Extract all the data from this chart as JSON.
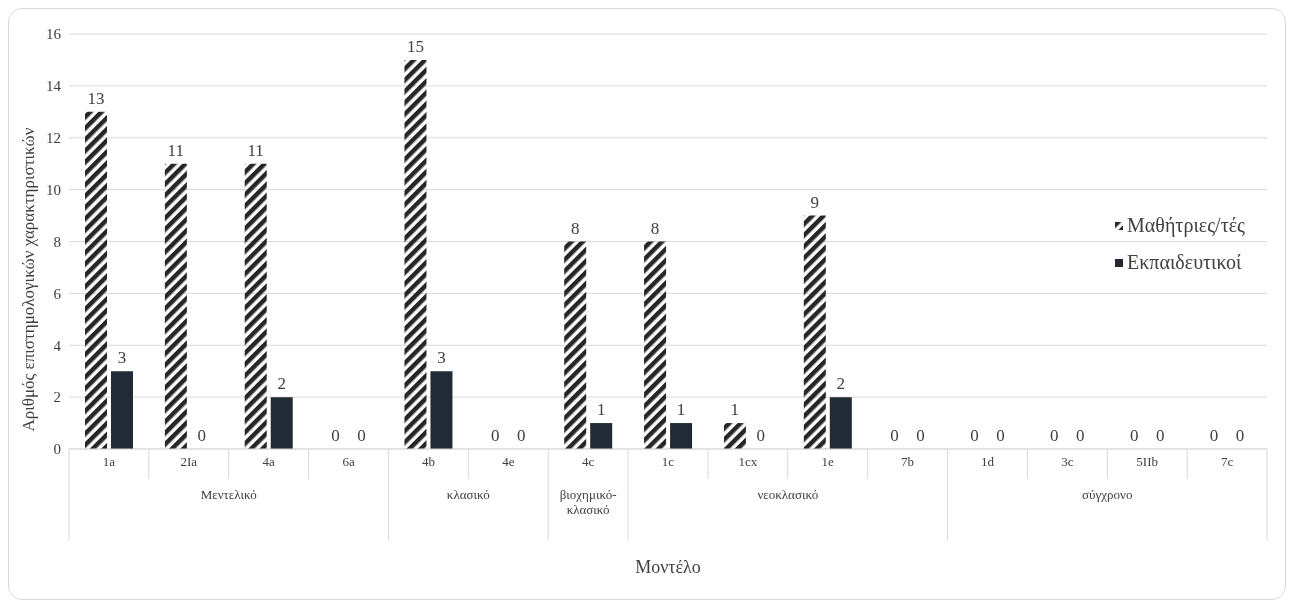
{
  "chart_data": {
    "type": "bar",
    "ylabel": "Αριθμός επιστημολογικών χαρακτηριστικών",
    "xlabel": "Μοντέλο",
    "categories": [
      "1a",
      "2Ia",
      "4a",
      "6a",
      "4b",
      "4e",
      "4c",
      "1c",
      "1cx",
      "1e",
      "7b",
      "1d",
      "3c",
      "5IIb",
      "7c"
    ],
    "series": [
      {
        "name": "Μαθήτριες/τές",
        "color": "#262626",
        "values": [
          13,
          11,
          11,
          0,
          15,
          0,
          8,
          8,
          1,
          9,
          0,
          0,
          0,
          0,
          0
        ]
      },
      {
        "name": "Εκπαιδευτικοί",
        "color": "#222a35",
        "values": [
          3,
          0,
          2,
          0,
          3,
          0,
          1,
          1,
          0,
          2,
          0,
          0,
          0,
          0,
          0
        ]
      }
    ],
    "annotations": [
      "Μεντελικό",
      "κλασικό",
      "βιοχημικό-κλασικό",
      "νεοκλασικό",
      "σύγχρονο"
    ],
    "ylim": [
      0,
      16
    ],
    "yticks": [
      0,
      2,
      4,
      6,
      8,
      10,
      12,
      14,
      16
    ],
    "grid": "y",
    "legend": "right",
    "data_labels": true
  }
}
